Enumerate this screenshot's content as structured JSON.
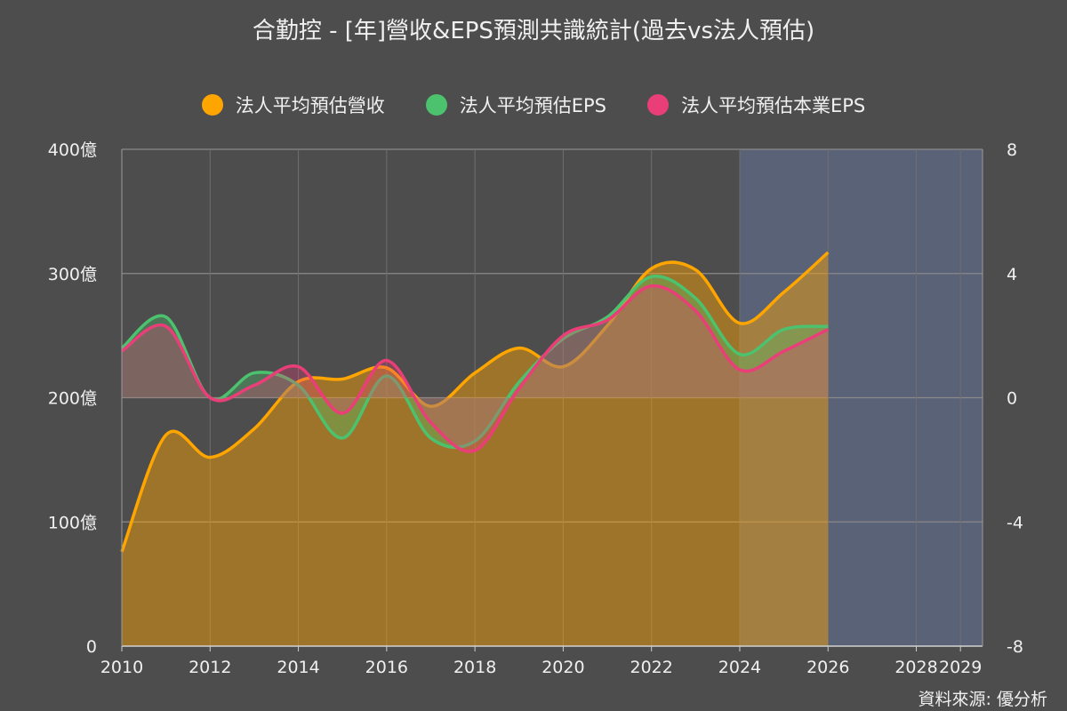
{
  "title": "合勤控 - [年]營收&EPS預測共識統計(過去vs法人預估)",
  "source": "資料來源: 優分析",
  "colors": {
    "revenue": "#ffa500",
    "eps": "#4cc26e",
    "core_eps": "#ea3e78",
    "forecast_band": "#5a6278"
  },
  "chart_data": {
    "type": "area",
    "title": "合勤控 - [年]營收&EPS預測共識統計(過去vs法人預估)",
    "x_ticks": [
      "2010",
      "2012",
      "2014",
      "2016",
      "2018",
      "2020",
      "2022",
      "2024",
      "2026",
      "2028",
      "2029"
    ],
    "x_range": [
      2010,
      2029.5
    ],
    "forecast_band": [
      2024,
      2029.5
    ],
    "y_left": {
      "ticks": [
        "0",
        "100億",
        "200億",
        "300億",
        "400億"
      ],
      "range": [
        0,
        400
      ],
      "unit": "億"
    },
    "y_right": {
      "ticks": [
        "-8",
        "-4",
        "0",
        "4",
        "8"
      ],
      "range": [
        -8,
        8
      ]
    },
    "grid": true,
    "legend_position": "top-center",
    "series": [
      {
        "name": "法人平均預估營收",
        "axis": "left",
        "color_key": "revenue",
        "x": [
          2010,
          2011,
          2012,
          2013,
          2014,
          2015,
          2016,
          2017,
          2018,
          2019,
          2020,
          2021,
          2022,
          2023,
          2024,
          2025,
          2026
        ],
        "values": [
          76,
          170,
          152,
          175,
          213,
          215,
          224,
          193,
          220,
          240,
          225,
          258,
          304,
          303,
          260,
          285,
          317
        ]
      },
      {
        "name": "法人平均預估EPS",
        "axis": "right",
        "color_key": "eps",
        "x": [
          2010,
          2011,
          2012,
          2013,
          2014,
          2015,
          2016,
          2017,
          2018,
          2019,
          2020,
          2021,
          2022,
          2023,
          2024,
          2025,
          2026
        ],
        "values": [
          1.6,
          2.6,
          0,
          0.8,
          0.4,
          -1.3,
          0.7,
          -1.3,
          -1.4,
          0.5,
          1.9,
          2.6,
          3.9,
          3.2,
          1.4,
          2.2,
          2.3
        ]
      },
      {
        "name": "法人平均預估本業EPS",
        "axis": "right",
        "color_key": "core_eps",
        "x": [
          2010,
          2011,
          2012,
          2013,
          2014,
          2015,
          2016,
          2017,
          2018,
          2019,
          2020,
          2021,
          2022,
          2023,
          2024,
          2025,
          2026
        ],
        "values": [
          1.5,
          2.3,
          0,
          0.4,
          1.0,
          -0.5,
          1.2,
          -0.8,
          -1.7,
          0.3,
          2.0,
          2.5,
          3.6,
          2.8,
          0.9,
          1.5,
          2.2
        ]
      }
    ]
  }
}
